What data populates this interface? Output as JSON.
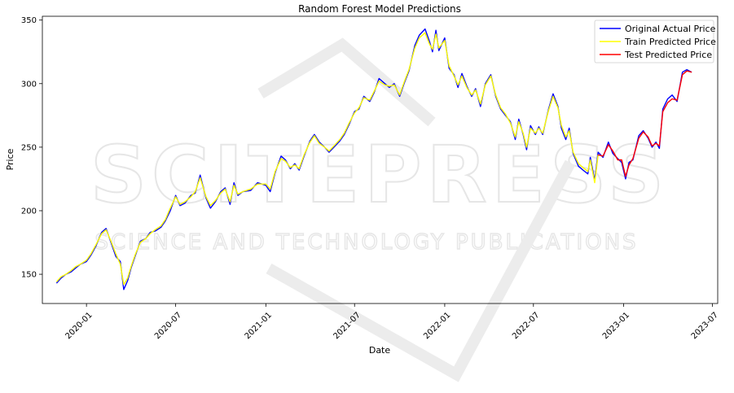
{
  "watermark": {
    "main": "SCITEPRESS",
    "sub": "SCIENCE AND TECHNOLOGY PUBLICATIONS"
  },
  "chart_data": {
    "type": "line",
    "title": "Random Forest Model Predictions",
    "xlabel": "Date",
    "ylabel": "Price",
    "xlim": [
      "2019-10-03",
      "2023-07-12"
    ],
    "ylim": [
      127,
      353
    ],
    "x_ticks": [
      "2020-01",
      "2020-07",
      "2021-01",
      "2021-07",
      "2022-01",
      "2022-07",
      "2023-01",
      "2023-07"
    ],
    "y_ticks": [
      150,
      200,
      250,
      300,
      350
    ],
    "grid": false,
    "legend_position": "top-right",
    "series": [
      {
        "name": "Original Actual Price",
        "color": "#0000ff",
        "points": [
          [
            "2019-11-01",
            143
          ],
          [
            "2019-11-10",
            147
          ],
          [
            "2019-11-20",
            150
          ],
          [
            "2019-12-01",
            152
          ],
          [
            "2019-12-10",
            155
          ],
          [
            "2019-12-20",
            158
          ],
          [
            "2020-01-01",
            160
          ],
          [
            "2020-01-10",
            165
          ],
          [
            "2020-01-20",
            172
          ],
          [
            "2020-02-01",
            183
          ],
          [
            "2020-02-10",
            186
          ],
          [
            "2020-02-20",
            175
          ],
          [
            "2020-03-01",
            164
          ],
          [
            "2020-03-10",
            160
          ],
          [
            "2020-03-17",
            138
          ],
          [
            "2020-03-25",
            145
          ],
          [
            "2020-04-01",
            155
          ],
          [
            "2020-04-10",
            165
          ],
          [
            "2020-04-20",
            176
          ],
          [
            "2020-05-01",
            178
          ],
          [
            "2020-05-10",
            183
          ],
          [
            "2020-05-20",
            184
          ],
          [
            "2020-06-01",
            187
          ],
          [
            "2020-06-10",
            192
          ],
          [
            "2020-06-20",
            200
          ],
          [
            "2020-07-01",
            212
          ],
          [
            "2020-07-10",
            204
          ],
          [
            "2020-07-20",
            206
          ],
          [
            "2020-08-01",
            212
          ],
          [
            "2020-08-10",
            214
          ],
          [
            "2020-08-20",
            228
          ],
          [
            "2020-09-01",
            210
          ],
          [
            "2020-09-10",
            202
          ],
          [
            "2020-09-20",
            207
          ],
          [
            "2020-10-01",
            215
          ],
          [
            "2020-10-10",
            218
          ],
          [
            "2020-10-20",
            205
          ],
          [
            "2020-10-28",
            222
          ],
          [
            "2020-11-05",
            212
          ],
          [
            "2020-11-15",
            215
          ],
          [
            "2020-12-01",
            216
          ],
          [
            "2020-12-15",
            222
          ],
          [
            "2021-01-01",
            220
          ],
          [
            "2021-01-10",
            215
          ],
          [
            "2021-01-20",
            230
          ],
          [
            "2021-02-01",
            243
          ],
          [
            "2021-02-10",
            240
          ],
          [
            "2021-02-20",
            233
          ],
          [
            "2021-03-01",
            237
          ],
          [
            "2021-03-10",
            232
          ],
          [
            "2021-03-20",
            243
          ],
          [
            "2021-04-01",
            255
          ],
          [
            "2021-04-10",
            260
          ],
          [
            "2021-04-20",
            254
          ],
          [
            "2021-05-01",
            250
          ],
          [
            "2021-05-10",
            246
          ],
          [
            "2021-05-20",
            250
          ],
          [
            "2021-06-01",
            255
          ],
          [
            "2021-06-10",
            260
          ],
          [
            "2021-06-20",
            268
          ],
          [
            "2021-07-01",
            278
          ],
          [
            "2021-07-10",
            280
          ],
          [
            "2021-07-20",
            290
          ],
          [
            "2021-08-01",
            286
          ],
          [
            "2021-08-10",
            293
          ],
          [
            "2021-08-20",
            304
          ],
          [
            "2021-09-01",
            300
          ],
          [
            "2021-09-10",
            297
          ],
          [
            "2021-09-20",
            300
          ],
          [
            "2021-10-01",
            290
          ],
          [
            "2021-10-10",
            300
          ],
          [
            "2021-10-20",
            310
          ],
          [
            "2021-11-01",
            330
          ],
          [
            "2021-11-10",
            338
          ],
          [
            "2021-11-22",
            343
          ],
          [
            "2021-12-01",
            333
          ],
          [
            "2021-12-07",
            325
          ],
          [
            "2021-12-14",
            342
          ],
          [
            "2021-12-20",
            326
          ],
          [
            "2022-01-01",
            336
          ],
          [
            "2022-01-10",
            312
          ],
          [
            "2022-01-20",
            307
          ],
          [
            "2022-01-28",
            297
          ],
          [
            "2022-02-05",
            308
          ],
          [
            "2022-02-15",
            298
          ],
          [
            "2022-02-25",
            290
          ],
          [
            "2022-03-05",
            296
          ],
          [
            "2022-03-15",
            282
          ],
          [
            "2022-03-25",
            300
          ],
          [
            "2022-04-05",
            307
          ],
          [
            "2022-04-15",
            290
          ],
          [
            "2022-04-25",
            280
          ],
          [
            "2022-05-05",
            275
          ],
          [
            "2022-05-15",
            270
          ],
          [
            "2022-05-25",
            256
          ],
          [
            "2022-06-01",
            272
          ],
          [
            "2022-06-10",
            260
          ],
          [
            "2022-06-17",
            248
          ],
          [
            "2022-06-25",
            267
          ],
          [
            "2022-07-05",
            260
          ],
          [
            "2022-07-12",
            266
          ],
          [
            "2022-07-20",
            260
          ],
          [
            "2022-08-01",
            280
          ],
          [
            "2022-08-10",
            292
          ],
          [
            "2022-08-20",
            282
          ],
          [
            "2022-08-27",
            265
          ],
          [
            "2022-09-05",
            256
          ],
          [
            "2022-09-12",
            265
          ],
          [
            "2022-09-20",
            245
          ],
          [
            "2022-10-01",
            235
          ],
          [
            "2022-10-10",
            232
          ],
          [
            "2022-10-20",
            229
          ],
          [
            "2022-10-25",
            242
          ],
          [
            "2022-11-03",
            224
          ],
          [
            "2022-11-10",
            246
          ],
          [
            "2022-11-20",
            242
          ],
          [
            "2022-12-01",
            254
          ],
          [
            "2022-12-10",
            245
          ],
          [
            "2022-12-20",
            241
          ],
          [
            "2022-12-28",
            238
          ],
          [
            "2023-01-05",
            225
          ],
          [
            "2023-01-12",
            238
          ],
          [
            "2023-01-20",
            240
          ],
          [
            "2023-02-01",
            259
          ],
          [
            "2023-02-10",
            263
          ],
          [
            "2023-02-20",
            257
          ],
          [
            "2023-02-28",
            250
          ],
          [
            "2023-03-08",
            254
          ],
          [
            "2023-03-15",
            249
          ],
          [
            "2023-03-22",
            280
          ],
          [
            "2023-04-01",
            288
          ],
          [
            "2023-04-10",
            291
          ],
          [
            "2023-04-20",
            286
          ],
          [
            "2023-05-01",
            309
          ],
          [
            "2023-05-10",
            311
          ],
          [
            "2023-05-20",
            309
          ]
        ]
      },
      {
        "name": "Train Predicted Price",
        "color": "#ffff00",
        "points": [
          [
            "2019-11-01",
            144
          ],
          [
            "2019-11-10",
            148
          ],
          [
            "2019-11-20",
            150
          ],
          [
            "2019-12-01",
            153
          ],
          [
            "2019-12-10",
            156
          ],
          [
            "2019-12-20",
            158
          ],
          [
            "2020-01-01",
            161
          ],
          [
            "2020-01-10",
            166
          ],
          [
            "2020-01-20",
            173
          ],
          [
            "2020-02-01",
            182
          ],
          [
            "2020-02-10",
            185
          ],
          [
            "2020-02-20",
            176
          ],
          [
            "2020-03-01",
            166
          ],
          [
            "2020-03-10",
            158
          ],
          [
            "2020-03-17",
            142
          ],
          [
            "2020-03-25",
            147
          ],
          [
            "2020-04-01",
            156
          ],
          [
            "2020-04-10",
            166
          ],
          [
            "2020-04-20",
            175
          ],
          [
            "2020-05-01",
            178
          ],
          [
            "2020-05-10",
            182
          ],
          [
            "2020-05-20",
            185
          ],
          [
            "2020-06-01",
            188
          ],
          [
            "2020-06-10",
            193
          ],
          [
            "2020-06-20",
            202
          ],
          [
            "2020-07-01",
            211
          ],
          [
            "2020-07-10",
            205
          ],
          [
            "2020-07-20",
            207
          ],
          [
            "2020-08-01",
            211
          ],
          [
            "2020-08-10",
            215
          ],
          [
            "2020-08-20",
            226
          ],
          [
            "2020-09-01",
            211
          ],
          [
            "2020-09-10",
            204
          ],
          [
            "2020-09-20",
            208
          ],
          [
            "2020-10-01",
            214
          ],
          [
            "2020-10-10",
            217
          ],
          [
            "2020-10-20",
            207
          ],
          [
            "2020-10-28",
            220
          ],
          [
            "2020-11-05",
            213
          ],
          [
            "2020-11-15",
            215
          ],
          [
            "2020-12-01",
            217
          ],
          [
            "2020-12-15",
            221
          ],
          [
            "2021-01-01",
            221
          ],
          [
            "2021-01-10",
            217
          ],
          [
            "2021-01-20",
            231
          ],
          [
            "2021-02-01",
            241
          ],
          [
            "2021-02-10",
            239
          ],
          [
            "2021-02-20",
            234
          ],
          [
            "2021-03-01",
            236
          ],
          [
            "2021-03-10",
            233
          ],
          [
            "2021-03-20",
            244
          ],
          [
            "2021-04-01",
            254
          ],
          [
            "2021-04-10",
            259
          ],
          [
            "2021-04-20",
            253
          ],
          [
            "2021-05-01",
            250
          ],
          [
            "2021-05-10",
            247
          ],
          [
            "2021-05-20",
            251
          ],
          [
            "2021-06-01",
            256
          ],
          [
            "2021-06-10",
            261
          ],
          [
            "2021-06-20",
            269
          ],
          [
            "2021-07-01",
            277
          ],
          [
            "2021-07-10",
            281
          ],
          [
            "2021-07-20",
            289
          ],
          [
            "2021-08-01",
            287
          ],
          [
            "2021-08-10",
            294
          ],
          [
            "2021-08-20",
            302
          ],
          [
            "2021-09-01",
            299
          ],
          [
            "2021-09-10",
            298
          ],
          [
            "2021-09-20",
            299
          ],
          [
            "2021-10-01",
            291
          ],
          [
            "2021-10-10",
            301
          ],
          [
            "2021-10-20",
            311
          ],
          [
            "2021-11-01",
            328
          ],
          [
            "2021-11-10",
            336
          ],
          [
            "2021-11-22",
            340
          ],
          [
            "2021-12-01",
            331
          ],
          [
            "2021-12-07",
            327
          ],
          [
            "2021-12-14",
            339
          ],
          [
            "2021-12-20",
            328
          ],
          [
            "2022-01-01",
            334
          ],
          [
            "2022-01-10",
            314
          ],
          [
            "2022-01-20",
            306
          ],
          [
            "2022-01-28",
            299
          ],
          [
            "2022-02-05",
            306
          ],
          [
            "2022-02-15",
            297
          ],
          [
            "2022-02-25",
            291
          ],
          [
            "2022-03-05",
            295
          ],
          [
            "2022-03-15",
            284
          ],
          [
            "2022-03-25",
            299
          ],
          [
            "2022-04-05",
            306
          ],
          [
            "2022-04-15",
            291
          ],
          [
            "2022-04-25",
            281
          ],
          [
            "2022-05-05",
            276
          ],
          [
            "2022-05-15",
            269
          ],
          [
            "2022-05-25",
            258
          ],
          [
            "2022-06-01",
            270
          ],
          [
            "2022-06-10",
            261
          ],
          [
            "2022-06-17",
            250
          ],
          [
            "2022-06-25",
            265
          ],
          [
            "2022-07-05",
            261
          ],
          [
            "2022-07-12",
            265
          ],
          [
            "2022-07-20",
            261
          ],
          [
            "2022-08-01",
            279
          ],
          [
            "2022-08-10",
            290
          ],
          [
            "2022-08-20",
            281
          ],
          [
            "2022-08-27",
            267
          ],
          [
            "2022-09-05",
            258
          ],
          [
            "2022-09-12",
            263
          ],
          [
            "2022-09-20",
            246
          ],
          [
            "2022-10-01",
            237
          ],
          [
            "2022-10-10",
            234
          ],
          [
            "2022-10-20",
            231
          ],
          [
            "2022-10-25",
            240
          ],
          [
            "2022-11-03",
            222
          ],
          [
            "2022-11-10",
            244
          ]
        ]
      },
      {
        "name": "Test Predicted Price",
        "color": "#ff0000",
        "points": [
          [
            "2022-11-10",
            244
          ],
          [
            "2022-11-20",
            243
          ],
          [
            "2022-12-01",
            252
          ],
          [
            "2022-12-10",
            247
          ],
          [
            "2022-12-20",
            240
          ],
          [
            "2022-12-28",
            240
          ],
          [
            "2023-01-05",
            227
          ],
          [
            "2023-01-12",
            236
          ],
          [
            "2023-01-20",
            241
          ],
          [
            "2023-02-01",
            257
          ],
          [
            "2023-02-10",
            262
          ],
          [
            "2023-02-20",
            258
          ],
          [
            "2023-02-28",
            251
          ],
          [
            "2023-03-08",
            253
          ],
          [
            "2023-03-15",
            251
          ],
          [
            "2023-03-22",
            278
          ],
          [
            "2023-04-01",
            285
          ],
          [
            "2023-04-10",
            288
          ],
          [
            "2023-04-20",
            287
          ],
          [
            "2023-05-01",
            307
          ],
          [
            "2023-05-10",
            310
          ],
          [
            "2023-05-20",
            309
          ]
        ]
      }
    ]
  }
}
